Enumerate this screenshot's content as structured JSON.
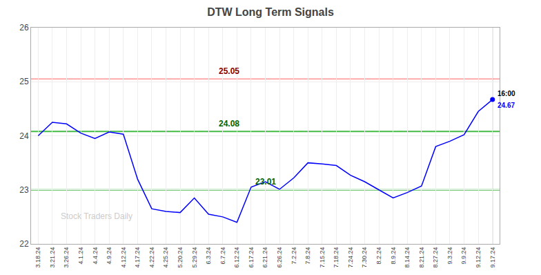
{
  "chart_data": {
    "type": "line",
    "title": "DTW Long Term Signals",
    "categories": [
      "3.18.24",
      "3.21.24",
      "3.26.24",
      "4.1.24",
      "4.4.24",
      "4.9.24",
      "4.12.24",
      "4.17.24",
      "4.22.24",
      "4.25.24",
      "5.20.24",
      "5.29.24",
      "6.3.24",
      "6.7.24",
      "6.12.24",
      "6.17.24",
      "6.21.24",
      "6.26.24",
      "7.2.24",
      "7.8.24",
      "7.15.24",
      "7.18.24",
      "7.24.24",
      "7.30.24",
      "8.2.24",
      "8.9.24",
      "8.14.24",
      "8.21.24",
      "8.27.24",
      "9.3.24",
      "9.9.24",
      "9.12.24",
      "9.17.24"
    ],
    "series": [
      {
        "color": "#0000ff",
        "values": [
          24.0,
          24.25,
          24.22,
          24.05,
          23.95,
          24.07,
          24.03,
          23.2,
          22.65,
          22.6,
          22.58,
          22.85,
          22.55,
          22.5,
          22.4,
          23.05,
          23.15,
          23.01,
          23.22,
          23.5,
          23.48,
          23.45,
          23.27,
          23.15,
          23.0,
          22.85,
          22.95,
          23.07,
          23.8,
          23.9,
          24.02,
          24.45,
          24.67
        ],
        "end_labels": [
          "16:00",
          "24.67"
        ]
      }
    ],
    "hlines": [
      {
        "value": 25.05,
        "color": "#ffaaaa"
      },
      {
        "value": 24.08,
        "color": "#44bb44"
      },
      {
        "value": 23.0,
        "color": "#44bb44"
      }
    ],
    "vlines": [
      "9.17.24"
    ],
    "annotations": [
      {
        "text": "25.05",
        "y": 25.05,
        "color": "darkred"
      },
      {
        "text": "24.08",
        "y": 24.08,
        "color": "darkgreen"
      },
      {
        "text": "23.01",
        "x": "6.21.24",
        "y": 23.01,
        "color": "darkgreen"
      }
    ],
    "watermark": "Stock Traders Daily",
    "ylim": [
      22.0,
      26.0
    ],
    "yticks": [
      22,
      23,
      24,
      25,
      26
    ],
    "grid": true
  }
}
